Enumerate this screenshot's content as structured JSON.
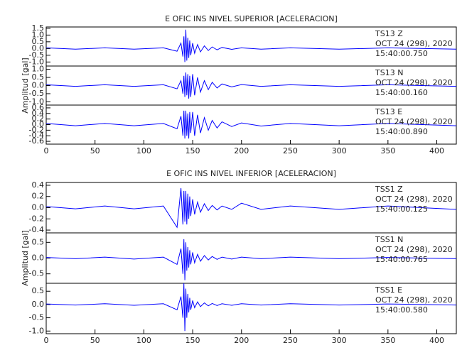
{
  "chart_data": [
    {
      "type": "line",
      "title": "E OFIC INS NIVEL SUPERIOR [ACELERACION]",
      "ylabel": "Amplitud [gal]",
      "color": "#0000ff",
      "xlim": [
        0,
        420
      ],
      "xticks": [
        0,
        50,
        100,
        150,
        200,
        250,
        300,
        350,
        400
      ],
      "x": [
        0,
        30,
        60,
        90,
        120,
        134,
        138,
        140,
        141,
        142,
        143,
        144,
        145,
        146,
        147,
        148,
        150,
        152,
        155,
        158,
        162,
        166,
        170,
        175,
        180,
        190,
        200,
        220,
        250,
        300,
        350,
        420
      ],
      "subplots": [
        {
          "annotations": [
            "TS13   Z",
            "OCT 24 (298), 2020",
            "15:40:00.750"
          ],
          "ylim": [
            -1.3,
            1.6
          ],
          "yticks": [
            {
              "value": -1,
              "label": "-1.0"
            },
            -0.5,
            {
              "value": 0,
              "label": "0.0"
            },
            0.5,
            {
              "value": 1,
              "label": "1.0"
            },
            1.5
          ],
          "values": [
            0.05,
            -0.05,
            0.05,
            -0.05,
            0.05,
            -0.2,
            0.4,
            -0.6,
            0.9,
            -1.0,
            1.4,
            -0.9,
            0.8,
            -0.7,
            0.6,
            -0.5,
            0.4,
            -0.35,
            0.3,
            -0.25,
            0.2,
            -0.15,
            0.12,
            -0.1,
            0.08,
            -0.06,
            0.05,
            -0.05,
            0.05,
            -0.05,
            0.05,
            -0.05
          ]
        },
        {
          "annotations": [
            "TS13   N",
            "OCT 24 (298), 2020",
            "15:40:00.160"
          ],
          "ylim": [
            -1.2,
            1.2
          ],
          "yticks": [
            {
              "value": -1,
              "label": "-1.0"
            },
            -0.5,
            {
              "value": 0,
              "label": "0.0"
            },
            0.5,
            {
              "value": 1,
              "label": "1.0"
            }
          ],
          "values": [
            0.05,
            -0.05,
            0.05,
            -0.05,
            0.05,
            -0.2,
            0.3,
            -0.5,
            0.6,
            -0.7,
            0.8,
            -0.6,
            0.7,
            -0.8,
            0.6,
            -0.7,
            0.7,
            -0.6,
            0.5,
            -0.4,
            0.3,
            -0.25,
            0.2,
            -0.15,
            0.1,
            -0.08,
            0.06,
            -0.05,
            0.05,
            -0.05,
            0.05,
            -0.05
          ]
        },
        {
          "annotations": [
            "TS13   E",
            "OCT 24 (298), 2020",
            "15:40:00.890"
          ],
          "ylim": [
            -0.7,
            0.7
          ],
          "yticks": [
            -0.6,
            -0.4,
            -0.2,
            {
              "value": 0,
              "label": "0.0"
            },
            0.2,
            0.4,
            0.6
          ],
          "values": [
            0.04,
            -0.04,
            0.04,
            -0.04,
            0.04,
            -0.15,
            0.3,
            -0.4,
            0.5,
            -0.5,
            0.5,
            -0.4,
            0.4,
            -0.5,
            0.45,
            -0.3,
            0.45,
            -0.4,
            0.35,
            -0.3,
            0.25,
            -0.2,
            0.15,
            -0.12,
            0.1,
            -0.07,
            0.06,
            -0.05,
            0.04,
            -0.04,
            0.04,
            -0.04
          ]
        }
      ]
    },
    {
      "type": "line",
      "title": "E OFIC INS NIVEL INFERIOR [ACELERACION]",
      "ylabel": "Amplitud [gal]",
      "color": "#0000ff",
      "xlim": [
        0,
        420
      ],
      "xticks": [
        0,
        50,
        100,
        150,
        200,
        250,
        300,
        350,
        400
      ],
      "x": [
        0,
        30,
        60,
        90,
        120,
        134,
        138,
        140,
        141,
        142,
        143,
        144,
        145,
        146,
        147,
        148,
        150,
        152,
        155,
        158,
        162,
        166,
        170,
        175,
        180,
        190,
        200,
        220,
        250,
        300,
        350,
        420
      ],
      "subplots": [
        {
          "annotations": [
            "TSS1   Z",
            "OCT 24 (298), 2020",
            "15:40:00.125"
          ],
          "ylim": [
            -0.45,
            0.45
          ],
          "yticks": [
            -0.4,
            -0.2,
            {
              "value": 0,
              "label": "0.0"
            },
            0.2,
            0.4
          ],
          "values": [
            0.02,
            -0.02,
            0.03,
            -0.02,
            0.03,
            -0.35,
            0.35,
            -0.3,
            0.3,
            -0.25,
            0.3,
            -0.3,
            0.25,
            -0.2,
            0.2,
            -0.15,
            0.15,
            -0.12,
            0.1,
            -0.08,
            0.07,
            -0.05,
            0.04,
            -0.04,
            0.03,
            -0.03,
            0.08,
            -0.03,
            0.03,
            -0.03,
            0.03,
            -0.03
          ]
        },
        {
          "annotations": [
            "TSS1   N",
            "OCT 24 (298), 2020",
            "15:40:00.765"
          ],
          "ylim": [
            -0.8,
            0.8
          ],
          "yticks": [
            -0.5,
            {
              "value": 0,
              "label": "0.0"
            },
            0.5
          ],
          "values": [
            0.02,
            -0.02,
            0.03,
            -0.03,
            0.03,
            -0.2,
            0.3,
            -0.5,
            0.6,
            -0.7,
            0.5,
            -0.4,
            0.35,
            -0.3,
            0.25,
            -0.2,
            0.18,
            -0.15,
            0.12,
            -0.1,
            0.08,
            -0.06,
            0.05,
            -0.04,
            0.03,
            -0.03,
            0.03,
            -0.02,
            0.03,
            -0.02,
            0.02,
            -0.02
          ]
        },
        {
          "annotations": [
            "TSS1   E",
            "OCT 24 (298), 2020",
            "15:40:00.580"
          ],
          "ylim": [
            -1.1,
            0.8
          ],
          "yticks": [
            {
              "value": -1,
              "label": "-1.0"
            },
            -0.5,
            {
              "value": 0,
              "label": "0.0"
            },
            0.5
          ],
          "values": [
            0.02,
            -0.02,
            0.03,
            -0.03,
            0.03,
            -0.2,
            0.3,
            -0.5,
            0.8,
            -1.0,
            0.6,
            -0.5,
            0.4,
            -0.3,
            0.25,
            -0.2,
            0.15,
            -0.12,
            0.1,
            -0.08,
            0.06,
            -0.05,
            0.04,
            -0.04,
            0.03,
            -0.03,
            0.03,
            -0.02,
            0.03,
            -0.02,
            0.02,
            -0.02
          ]
        }
      ]
    }
  ]
}
